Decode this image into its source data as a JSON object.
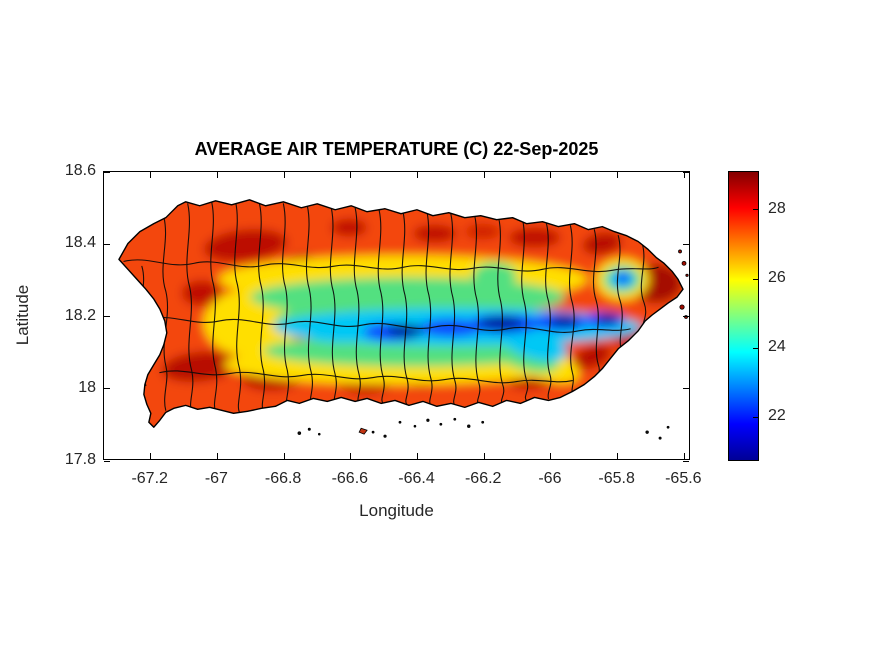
{
  "figure": {
    "background": "#ffffff"
  },
  "chart_data": {
    "type": "heatmap",
    "title": "AVERAGE AIR TEMPERATURE (C) 22-Sep-2025",
    "variable": "Average air temperature",
    "units": "C",
    "date": "22-Sep-2025",
    "region": "Puerto Rico with municipal boundaries overlaid",
    "xlabel": "Longitude",
    "ylabel": "Latitude",
    "xlim": [
      -67.34,
      -65.58
    ],
    "ylim": [
      17.8,
      18.6
    ],
    "x_ticks": [
      -67.2,
      -67,
      -66.8,
      -66.6,
      -66.4,
      -66.2,
      -66,
      -65.8,
      -65.6
    ],
    "x_tick_labels": [
      "-67.2",
      "-67",
      "-66.8",
      "-66.6",
      "-66.4",
      "-66.2",
      "-66",
      "-65.8",
      "-65.6"
    ],
    "y_ticks": [
      17.8,
      18,
      18.2,
      18.4,
      18.6
    ],
    "y_tick_labels": [
      "17.8",
      "18",
      "18.2",
      "18.4",
      "18.6"
    ],
    "grid": false,
    "legend": "colorbar right",
    "colorbar": {
      "min": 20.7,
      "max": 29.1,
      "ticks": [
        22,
        24,
        26,
        28
      ],
      "tick_labels": [
        "22",
        "24",
        "26",
        "28"
      ],
      "colormap": "jet",
      "gradient_stops": [
        {
          "pos": 0.0,
          "color": "#000096"
        },
        {
          "pos": 0.125,
          "color": "#0000ff"
        },
        {
          "pos": 0.375,
          "color": "#00ffff"
        },
        {
          "pos": 0.625,
          "color": "#ffff00"
        },
        {
          "pos": 0.875,
          "color": "#ff0000"
        },
        {
          "pos": 1.0,
          "color": "#840000"
        }
      ]
    },
    "field_summary": [
      {
        "area": "coastal lowlands (north, south, west and east coasts)",
        "approx_temp_c": [
          27.5,
          29.1
        ]
      },
      {
        "area": "east tip (Fajardo/Ceiba) and northeast coast",
        "approx_temp_c": [
          28,
          29
        ]
      },
      {
        "area": "mid-elevation transition belt around the mountains",
        "approx_temp_c": [
          24.5,
          27
        ]
      },
      {
        "area": "Cordillera Central ridge (lon -66.9 to -65.95, lat 18.05 to 18.2)",
        "approx_temp_c": [
          21,
          24
        ]
      },
      {
        "area": "coolest core of the ridge (lon -66.55 to -66.15, lat 18.12 to 18.18)",
        "approx_temp_c": [
          20.7,
          22
        ]
      },
      {
        "area": "El Yunque / Sierra de Luquillo (lon -65.79, lat 18.30)",
        "approx_temp_c": [
          22.5,
          24.5
        ]
      },
      {
        "area": "southeast Cayey/Carite extension (lon -66.1 to -65.9, lat 18.0 to 18.1)",
        "approx_temp_c": [
          23.5,
          25.5
        ]
      }
    ]
  }
}
